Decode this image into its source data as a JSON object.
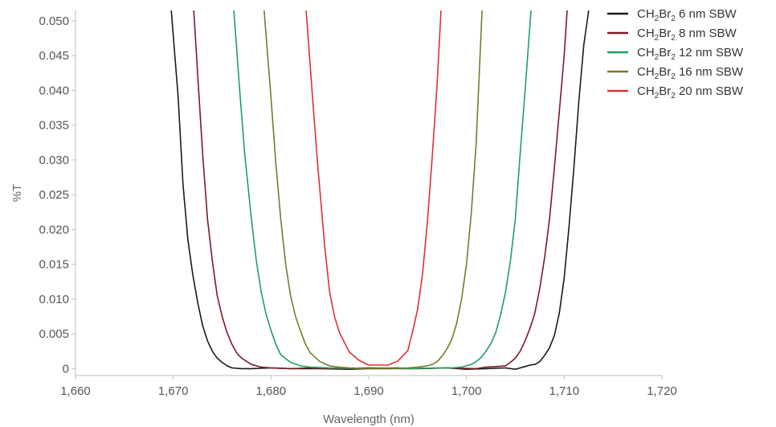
{
  "chart_data": {
    "type": "line",
    "title": "",
    "xlabel": "Wavelength (nm)",
    "ylabel": "%T",
    "xlim": [
      1660,
      1720
    ],
    "ylim": [
      -0.001,
      0.0515
    ],
    "x_ticks": [
      1660,
      1670,
      1680,
      1690,
      1700,
      1710,
      1720
    ],
    "x_tick_labels": [
      "1,660",
      "1,670",
      "1,680",
      "1,690",
      "1,700",
      "1,710",
      "1,720"
    ],
    "y_ticks": [
      0,
      0.005,
      0.01,
      0.015,
      0.02,
      0.025,
      0.03,
      0.035,
      0.04,
      0.045,
      0.05
    ],
    "y_tick_labels": [
      "0",
      "0.005",
      "0.010",
      "0.015",
      "0.020",
      "0.025",
      "0.030",
      "0.035",
      "0.040",
      "0.045",
      "0.050"
    ],
    "grid": false,
    "legend_position": "top-right",
    "series": [
      {
        "name": "CH2Br2 6 nm SBW",
        "legend": {
          "base1": "CH",
          "sub1": "2",
          "base2": "Br",
          "sub2": "2",
          "rest": " 6 nm SBW"
        },
        "color": "#1a1a1a",
        "x": [
          1669.8,
          1670.5,
          1671.0,
          1671.5,
          1672.0,
          1672.5,
          1673.0,
          1673.5,
          1674.0,
          1674.5,
          1675.0,
          1675.5,
          1676.0,
          1677.0,
          1678.0,
          1680.0,
          1682.0,
          1685.0,
          1688.0,
          1690.0,
          1693.0,
          1695.0,
          1698.0,
          1700.0,
          1702.0,
          1704.0,
          1705.0,
          1706.0,
          1706.5,
          1707.0,
          1707.5,
          1708.0,
          1708.5,
          1709.0,
          1709.5,
          1710.0,
          1710.5,
          1711.0,
          1711.5,
          1712.0,
          1712.5
        ],
        "y": [
          0.0515,
          0.039,
          0.0265,
          0.0185,
          0.0135,
          0.0095,
          0.0062,
          0.004,
          0.0025,
          0.0015,
          0.0009,
          0.0004,
          0.0001,
          0.0,
          0.0,
          0.0001,
          0.0,
          0.0,
          -0.0001,
          0.0,
          0.0001,
          0.0,
          0.0001,
          -0.0001,
          0.0,
          0.0001,
          -0.0001,
          0.0003,
          0.0005,
          0.0006,
          0.001,
          0.0019,
          0.003,
          0.0048,
          0.008,
          0.013,
          0.0205,
          0.029,
          0.0385,
          0.0465,
          0.0515
        ]
      },
      {
        "name": "CH2Br2 8 nm SBW",
        "legend": {
          "base1": "CH",
          "sub1": "2",
          "base2": "Br",
          "sub2": "2",
          "rest": " 8 nm SBW"
        },
        "color": "#7a1a24",
        "x": [
          1672.1,
          1672.6,
          1673.0,
          1673.5,
          1674.0,
          1674.5,
          1675.0,
          1675.5,
          1676.0,
          1676.5,
          1677.0,
          1678.0,
          1679.0,
          1680.0,
          1682.0,
          1684.0,
          1686.0,
          1690.0,
          1694.0,
          1698.0,
          1701.0,
          1702.0,
          1703.0,
          1704.0,
          1704.5,
          1705.0,
          1705.5,
          1706.0,
          1706.5,
          1707.0,
          1707.5,
          1708.0,
          1708.5,
          1709.0,
          1709.5,
          1710.0,
          1710.3
        ],
        "y": [
          0.0515,
          0.04,
          0.031,
          0.0215,
          0.0155,
          0.0105,
          0.0075,
          0.0052,
          0.0035,
          0.0022,
          0.0015,
          0.0006,
          0.0002,
          0.0001,
          0.0,
          0.0001,
          0.0,
          0.0001,
          0.0,
          0.0001,
          0.0,
          0.0002,
          0.0003,
          0.0004,
          0.0009,
          0.0015,
          0.0025,
          0.004,
          0.0058,
          0.008,
          0.0115,
          0.016,
          0.0215,
          0.029,
          0.037,
          0.045,
          0.0515
        ]
      },
      {
        "name": "CH2Br2 12 nm SBW",
        "legend": {
          "base1": "CH",
          "sub1": "2",
          "base2": "Br",
          "sub2": "2",
          "rest": " 12 nm SBW"
        },
        "color": "#1fa060",
        "x": [
          1676.2,
          1676.8,
          1677.3,
          1678.0,
          1678.5,
          1679.0,
          1679.5,
          1680.0,
          1680.5,
          1681.0,
          1682.0,
          1683.0,
          1684.0,
          1686.0,
          1690.0,
          1694.0,
          1697.0,
          1698.5,
          1699.5,
          1700.0,
          1700.5,
          1701.0,
          1701.5,
          1702.0,
          1702.5,
          1703.0,
          1703.5,
          1704.0,
          1704.5,
          1705.0,
          1705.5,
          1706.0,
          1706.6
        ],
        "y": [
          0.0515,
          0.04,
          0.031,
          0.0215,
          0.0155,
          0.011,
          0.0078,
          0.0055,
          0.0035,
          0.002,
          0.0009,
          0.0004,
          0.0002,
          0.0001,
          0.0,
          0.0,
          0.0001,
          0.0001,
          0.0002,
          0.0004,
          0.0006,
          0.001,
          0.0016,
          0.0025,
          0.0036,
          0.0052,
          0.0078,
          0.011,
          0.0155,
          0.0215,
          0.031,
          0.04,
          0.0515
        ]
      },
      {
        "name": "CH2Br2 16 nm SBW",
        "legend": {
          "base1": "CH",
          "sub1": "2",
          "base2": "Br",
          "sub2": "2",
          "rest": " 16 nm SBW"
        },
        "color": "#7a7a2a",
        "x": [
          1679.3,
          1680.0,
          1680.5,
          1681.0,
          1681.5,
          1682.0,
          1682.5,
          1683.0,
          1683.5,
          1684.0,
          1685.0,
          1686.0,
          1687.0,
          1688.0,
          1690.0,
          1692.0,
          1694.0,
          1695.0,
          1696.0,
          1696.5,
          1697.0,
          1697.5,
          1698.0,
          1698.5,
          1699.0,
          1699.5,
          1700.0,
          1700.5,
          1701.0,
          1701.6
        ],
        "y": [
          0.0515,
          0.039,
          0.0295,
          0.0215,
          0.015,
          0.0105,
          0.0075,
          0.0055,
          0.0036,
          0.0023,
          0.001,
          0.0004,
          0.0002,
          0.0001,
          0.0,
          0.0,
          0.0001,
          0.0002,
          0.0004,
          0.0006,
          0.001,
          0.0018,
          0.0028,
          0.0042,
          0.0065,
          0.01,
          0.015,
          0.0225,
          0.0325,
          0.0515
        ]
      },
      {
        "name": "CH2Br2 20 nm SBW",
        "legend": {
          "base1": "CH",
          "sub1": "2",
          "base2": "Br",
          "sub2": "2",
          "rest": " 20 nm SBW"
        },
        "color": "#e03030",
        "x": [
          1683.6,
          1684.2,
          1684.8,
          1685.5,
          1686.0,
          1686.5,
          1687.0,
          1688.0,
          1689.0,
          1690.0,
          1691.0,
          1692.0,
          1693.0,
          1694.0,
          1694.5,
          1695.0,
          1695.5,
          1696.0,
          1696.5,
          1697.0,
          1697.4
        ],
        "y": [
          0.0515,
          0.04,
          0.029,
          0.0175,
          0.011,
          0.0075,
          0.0052,
          0.0024,
          0.0012,
          0.0005,
          0.0005,
          0.0005,
          0.0011,
          0.0026,
          0.0054,
          0.0085,
          0.0135,
          0.021,
          0.0305,
          0.041,
          0.0515
        ]
      }
    ]
  }
}
